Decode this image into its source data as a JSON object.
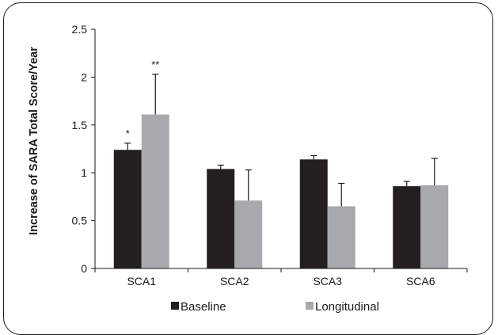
{
  "chart_data": {
    "type": "bar",
    "ylabel": "Increase of SARA Total Score/Year",
    "xlabel": "",
    "ylim": [
      0,
      2.5
    ],
    "yticks": [
      "0",
      "0.5",
      "1",
      "1.5",
      "2",
      "2.5"
    ],
    "categories": [
      "SCA1",
      "SCA2",
      "SCA3",
      "SCA6"
    ],
    "series": [
      {
        "name": "Baseline",
        "color": "#231f20",
        "values": [
          1.24,
          1.04,
          1.14,
          0.86
        ],
        "errors": [
          0.07,
          0.04,
          0.04,
          0.05
        ],
        "annotations": [
          "*",
          "",
          "",
          ""
        ]
      },
      {
        "name": "Longitudinal",
        "color": "#a7a9ac",
        "values": [
          1.61,
          0.71,
          0.65,
          0.87
        ],
        "errors": [
          0.42,
          0.32,
          0.24,
          0.28
        ],
        "annotations": [
          "**",
          "",
          "",
          ""
        ]
      }
    ],
    "legend_position": "bottom",
    "grid": false
  }
}
